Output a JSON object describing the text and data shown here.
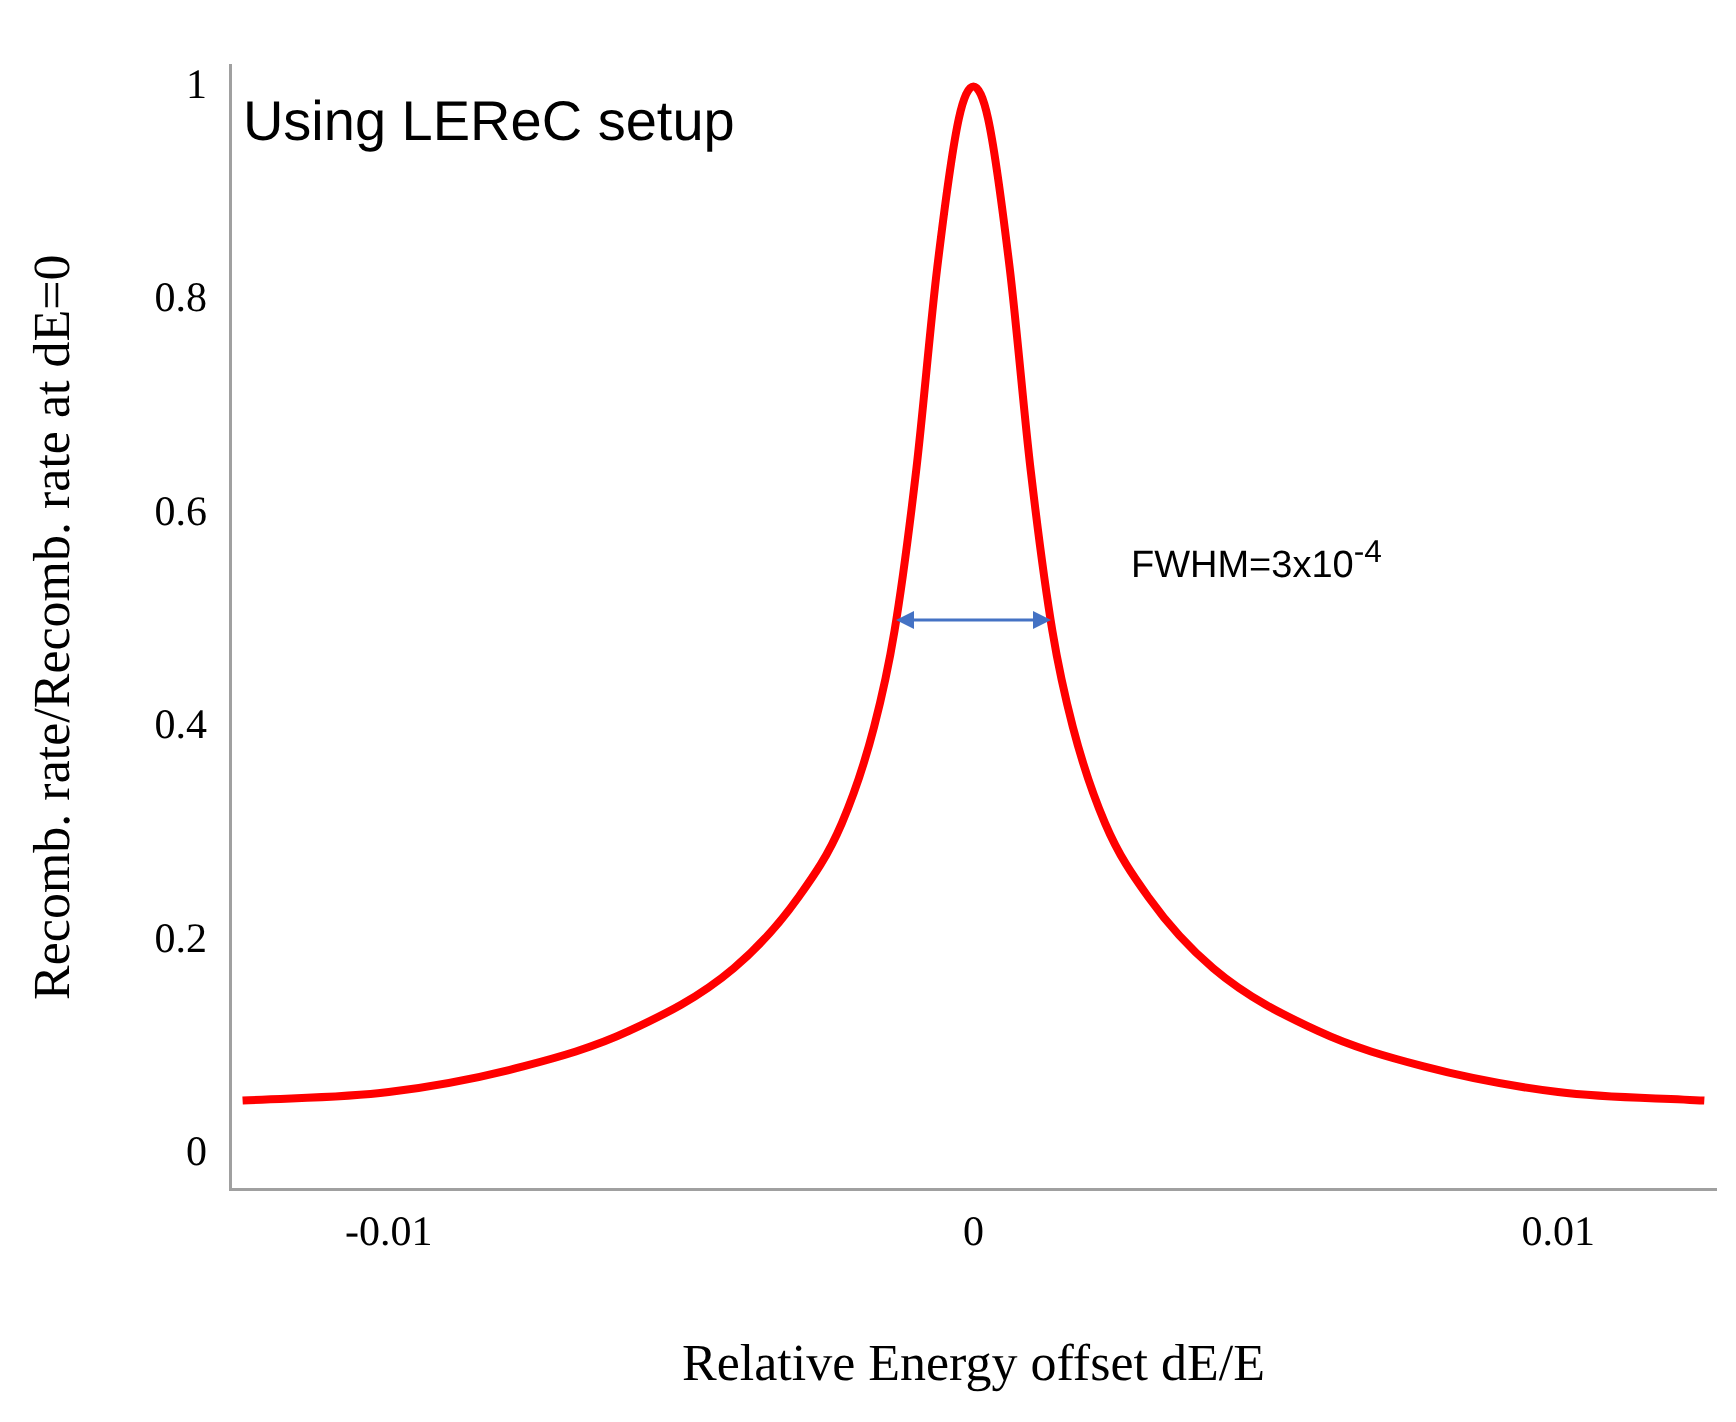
{
  "chart_data": {
    "type": "line",
    "xlabel": "Relative Energy offset dE/E",
    "ylabel": "Recomb. rate/Recomb. rate at dE=0",
    "x": [
      -0.0125,
      -0.01,
      -0.0077,
      -0.0059,
      -0.0041,
      -0.003,
      -0.00225,
      -0.0017,
      -0.00135,
      -0.00098,
      -0.00062,
      -0.00025,
      0,
      0.00025,
      0.00062,
      0.00098,
      0.00135,
      0.0017,
      0.00225,
      0.003,
      0.0041,
      0.0059,
      0.0077,
      0.01,
      0.0125
    ],
    "series": [
      {
        "color": "#ff0000",
        "values": [
          0.05,
          0.058,
          0.082,
          0.115,
          0.174,
          0.24,
          0.31,
          0.4,
          0.49,
          0.64,
          0.83,
          0.97,
          1,
          0.97,
          0.83,
          0.64,
          0.49,
          0.4,
          0.31,
          0.24,
          0.174,
          0.115,
          0.082,
          0.058,
          0.05
        ]
      }
    ],
    "xlim": [
      -0.0127,
      0.0127
    ],
    "xticks": [
      {
        "value": -0.01,
        "label": "-0.01"
      },
      0,
      0.01
    ],
    "ylim": [
      -0.033,
      1.02
    ],
    "yticks": [
      0,
      0.2,
      0.4,
      0.6,
      0.8,
      1
    ],
    "marker": "none",
    "line_style": "solid",
    "grid": false,
    "legend": false,
    "annotations": [
      "Using LEReC setup",
      "FWHM=3x10$^{-4}$"
    ]
  }
}
